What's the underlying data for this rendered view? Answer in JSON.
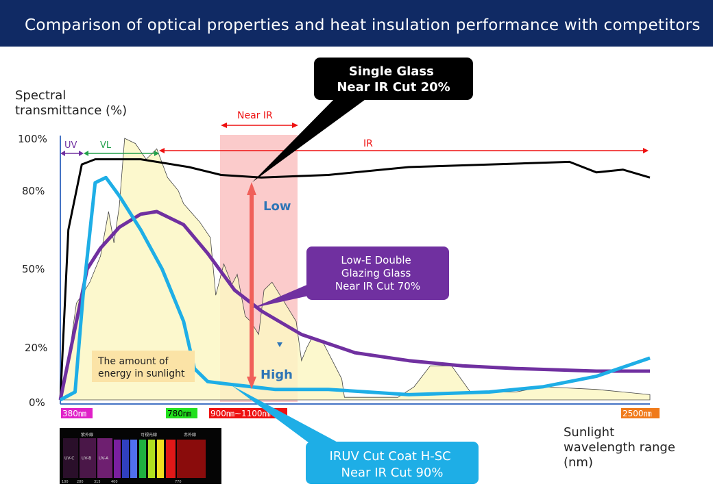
{
  "header": {
    "title": "Comparison of optical properties and heat insulation performance with competitors"
  },
  "colors": {
    "header_bg": "#102a64",
    "black_curve": "#000000",
    "purple_curve": "#7030a0",
    "blue_curve": "#1eaee6",
    "sunlight_fill": "#fbf7c4",
    "near_ir_band": "#f9b9b9",
    "arrow": "#f0605a",
    "low_high_text": "#2e75b6"
  },
  "chart_data": {
    "type": "line",
    "ylabel": "Spectral transmittance (%)",
    "xlabel": "Sunlight wavelength range (nm)",
    "ytick_labels": [
      "100%",
      "80%",
      "50%",
      "20%",
      "0%"
    ],
    "xtick_labels": [
      "380㎚",
      "780㎚",
      "900㎚~1100㎚",
      "2500㎚"
    ],
    "regions": [
      {
        "label": "UV",
        "color": "#7030a0"
      },
      {
        "label": "VL",
        "color": "#22a04b"
      },
      {
        "label": "Near IR",
        "color": "#ee1111"
      },
      {
        "label": "IR",
        "color": "#ee1111"
      }
    ],
    "series": [
      {
        "key": "single",
        "color": "#000000",
        "points": [
          [
            300,
            0
          ],
          [
            330,
            65
          ],
          [
            380,
            90
          ],
          [
            430,
            92
          ],
          [
            600,
            92
          ],
          [
            780,
            89
          ],
          [
            900,
            86
          ],
          [
            1050,
            85
          ],
          [
            1300,
            86
          ],
          [
            1600,
            89
          ],
          [
            1900,
            90
          ],
          [
            2200,
            91
          ],
          [
            2300,
            87
          ],
          [
            2400,
            88
          ],
          [
            2500,
            85
          ]
        ]
      },
      {
        "key": "lowe",
        "color": "#7030a0",
        "points": [
          [
            300,
            0
          ],
          [
            360,
            30
          ],
          [
            400,
            50
          ],
          [
            450,
            58
          ],
          [
            520,
            66
          ],
          [
            600,
            71
          ],
          [
            660,
            72
          ],
          [
            760,
            67
          ],
          [
            850,
            56
          ],
          [
            950,
            42
          ],
          [
            1050,
            34
          ],
          [
            1200,
            25
          ],
          [
            1400,
            18
          ],
          [
            1600,
            15
          ],
          [
            1800,
            13
          ],
          [
            2000,
            12
          ],
          [
            2300,
            11
          ],
          [
            2500,
            11
          ]
        ]
      },
      {
        "key": "iruv",
        "color": "#1eaee6",
        "points": [
          [
            300,
            0
          ],
          [
            355,
            3
          ],
          [
            385,
            40
          ],
          [
            430,
            83
          ],
          [
            470,
            85
          ],
          [
            520,
            78
          ],
          [
            600,
            65
          ],
          [
            680,
            50
          ],
          [
            760,
            30
          ],
          [
            800,
            12
          ],
          [
            850,
            7
          ],
          [
            930,
            6
          ],
          [
            1100,
            4
          ],
          [
            1300,
            4
          ],
          [
            1600,
            2
          ],
          [
            1900,
            3
          ],
          [
            2100,
            5
          ],
          [
            2300,
            9
          ],
          [
            2500,
            16
          ]
        ]
      },
      {
        "key": "sunlight",
        "color": "#fbf7c4",
        "points": [
          [
            300,
            0
          ],
          [
            330,
            15
          ],
          [
            360,
            37
          ],
          [
            380,
            40
          ],
          [
            410,
            45
          ],
          [
            450,
            55
          ],
          [
            480,
            72
          ],
          [
            500,
            60
          ],
          [
            520,
            74
          ],
          [
            540,
            100
          ],
          [
            580,
            98
          ],
          [
            620,
            92
          ],
          [
            660,
            96
          ],
          [
            700,
            85
          ],
          [
            740,
            80
          ],
          [
            760,
            75
          ],
          [
            820,
            68
          ],
          [
            860,
            62
          ],
          [
            880,
            40
          ],
          [
            910,
            52
          ],
          [
            940,
            44
          ],
          [
            960,
            48
          ],
          [
            990,
            32
          ],
          [
            1010,
            30
          ],
          [
            1040,
            25
          ],
          [
            1060,
            42
          ],
          [
            1090,
            45
          ],
          [
            1150,
            35
          ],
          [
            1180,
            30
          ],
          [
            1200,
            15
          ],
          [
            1220,
            20
          ],
          [
            1240,
            24
          ],
          [
            1280,
            22
          ],
          [
            1350,
            8
          ],
          [
            1360,
            1
          ],
          [
            1440,
            1
          ],
          [
            1500,
            1
          ],
          [
            1560,
            1
          ],
          [
            1620,
            5
          ],
          [
            1680,
            13
          ],
          [
            1760,
            13
          ],
          [
            1830,
            3
          ],
          [
            1950,
            3
          ],
          [
            2000,
            3
          ],
          [
            2100,
            5
          ],
          [
            2300,
            4
          ],
          [
            2400,
            3
          ],
          [
            2500,
            2
          ]
        ]
      }
    ],
    "annotations": {
      "single_glass": [
        "Single Glass",
        "Near IR Cut 20%"
      ],
      "lowe_double": [
        "Low-E Double",
        "Glazing Glass",
        "Near IR Cut 70%"
      ],
      "iruv": [
        "IRUV Cut Coat H-SC",
        "Near IR Cut 90%"
      ],
      "sunlight_energy": [
        "The amount of",
        "energy in sunlight"
      ],
      "low": "Low",
      "high": "High"
    },
    "ylabel_lines": [
      "Spectral",
      "transmittance (%)"
    ],
    "xlabel_lines": [
      "Sunlight",
      "wavelength range",
      "(nm)"
    ],
    "spectrum_inset": {
      "top_labels": [
        "紫外線",
        "可視光線",
        "赤外線"
      ],
      "band_labels": [
        "UV-C",
        "UV-B",
        "UV-A"
      ],
      "bottom_ticks": [
        "100",
        "280",
        "315",
        "400",
        "770"
      ]
    }
  }
}
